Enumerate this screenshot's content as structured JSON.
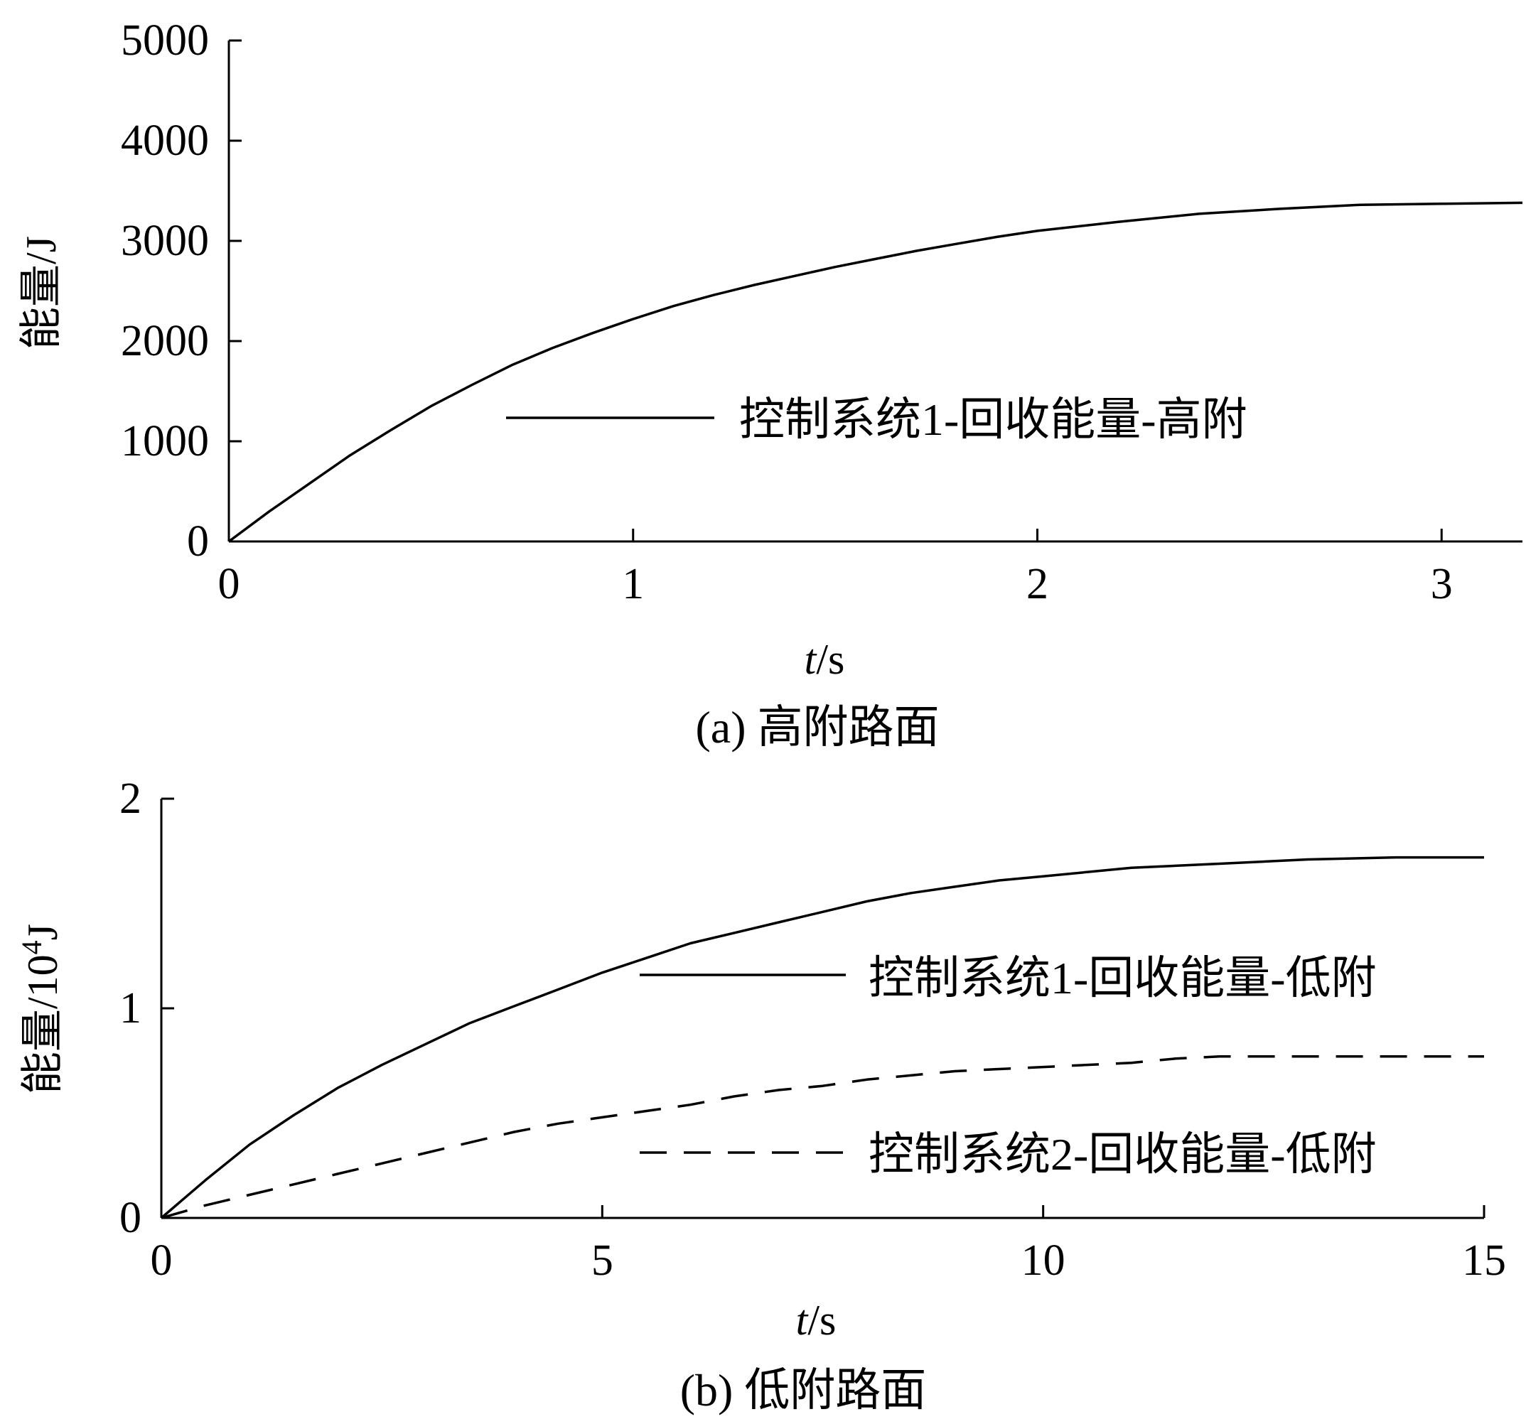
{
  "chart_data": [
    {
      "type": "line",
      "caption": "(a) 高附路面",
      "xlabel": "t/s",
      "ylabel": "能量/J",
      "xlim": [
        0,
        3.2
      ],
      "ylim": [
        0,
        5000
      ],
      "xticks": [
        "0",
        "1",
        "2",
        "3"
      ],
      "xtick_values": [
        0,
        1,
        2,
        3
      ],
      "yticks": [
        "0",
        "1000",
        "2000",
        "3000",
        "4000",
        "5000"
      ],
      "ytick_values": [
        0,
        1000,
        2000,
        3000,
        4000,
        5000
      ],
      "grid": false,
      "legend_position": "center-right",
      "series": [
        {
          "name": "控制系统1-回收能量-高附",
          "style": "solid",
          "x": [
            0,
            0.1,
            0.2,
            0.3,
            0.4,
            0.5,
            0.6,
            0.7,
            0.8,
            0.9,
            1.0,
            1.1,
            1.2,
            1.3,
            1.4,
            1.5,
            1.6,
            1.7,
            1.8,
            1.9,
            2.0,
            2.2,
            2.4,
            2.6,
            2.8,
            3.0,
            3.2
          ],
          "y": [
            0,
            300,
            580,
            860,
            1110,
            1350,
            1560,
            1760,
            1930,
            2080,
            2220,
            2350,
            2460,
            2560,
            2650,
            2740,
            2820,
            2900,
            2970,
            3040,
            3100,
            3190,
            3270,
            3320,
            3360,
            3370,
            3380
          ]
        }
      ]
    },
    {
      "type": "line",
      "caption": "(b) 低附路面",
      "xlabel": "t/s",
      "ylabel": "能量/10",
      "ylabel_sup": "4",
      "ylabel_unit": "J",
      "xlim": [
        0,
        15
      ],
      "ylim": [
        0,
        2
      ],
      "xticks": [
        "0",
        "5",
        "10",
        "15"
      ],
      "xtick_values": [
        0,
        5,
        10,
        15
      ],
      "yticks": [
        "0",
        "1",
        "2"
      ],
      "ytick_values": [
        0,
        1,
        2
      ],
      "grid": false,
      "legend_position": "center-right",
      "series": [
        {
          "name": "控制系统1-回收能量-低附",
          "style": "solid",
          "x": [
            0,
            0.5,
            1,
            1.5,
            2,
            2.5,
            3,
            3.5,
            4,
            4.5,
            5,
            5.5,
            6,
            6.5,
            7,
            7.5,
            8,
            8.5,
            9,
            9.5,
            10,
            11,
            12,
            13,
            14,
            15
          ],
          "y": [
            0,
            0.18,
            0.35,
            0.49,
            0.62,
            0.73,
            0.83,
            0.93,
            1.01,
            1.09,
            1.17,
            1.24,
            1.31,
            1.36,
            1.41,
            1.46,
            1.51,
            1.55,
            1.58,
            1.61,
            1.63,
            1.67,
            1.69,
            1.71,
            1.72,
            1.72
          ]
        },
        {
          "name": "控制系统2-回收能量-低附",
          "style": "dashed",
          "x": [
            0,
            0.5,
            1,
            1.5,
            2,
            2.5,
            3,
            3.5,
            4,
            4.5,
            5,
            5.5,
            6,
            6.5,
            7,
            7.5,
            8,
            8.5,
            9,
            9.5,
            10,
            11,
            11.5,
            12,
            13,
            14,
            15
          ],
          "y": [
            0,
            0.06,
            0.11,
            0.16,
            0.21,
            0.26,
            0.31,
            0.36,
            0.41,
            0.45,
            0.48,
            0.51,
            0.54,
            0.58,
            0.61,
            0.63,
            0.66,
            0.68,
            0.7,
            0.71,
            0.72,
            0.74,
            0.76,
            0.77,
            0.77,
            0.77,
            0.77
          ]
        }
      ]
    }
  ]
}
